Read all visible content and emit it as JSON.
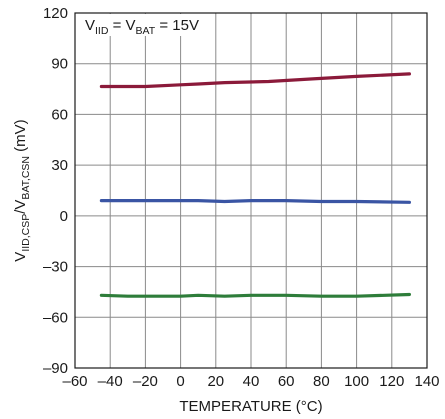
{
  "chart_data": {
    "type": "line",
    "title": "",
    "annotation": {
      "prefix": "V",
      "sub1": "IID",
      "mid": " = V",
      "sub2": "BAT",
      "suffix": " = 15V"
    },
    "xlabel": "TEMPERATURE (°C)",
    "ylabel": {
      "prefix": "V",
      "sub1": "IID,CSP",
      "mid": "/V",
      "sub2": "BAT,CSN",
      "suffix": " (mV)"
    },
    "xlim": [
      -60,
      140
    ],
    "ylim": [
      -90,
      120
    ],
    "x_ticks": [
      -60,
      -40,
      -20,
      0,
      20,
      40,
      60,
      80,
      100,
      120,
      140
    ],
    "x_tick_labels": [
      "–60",
      "–40",
      "–20",
      "0",
      "20",
      "40",
      "60",
      "80",
      "100",
      "120",
      "140"
    ],
    "y_ticks": [
      -90,
      -60,
      -30,
      0,
      30,
      60,
      90,
      120
    ],
    "y_tick_labels": [
      "–90",
      "–60",
      "–30",
      "0",
      "30",
      "60",
      "90",
      "120"
    ],
    "grid": true,
    "legend": "none",
    "series": [
      {
        "color": "#8b1a3a",
        "x": [
          -45,
          -20,
          0,
          10,
          25,
          50,
          75,
          100,
          130
        ],
        "values": [
          76.5,
          76.5,
          77.5,
          78,
          78.8,
          79.5,
          81,
          82.5,
          84
        ]
      },
      {
        "color": "#3a55a4",
        "x": [
          -45,
          -20,
          0,
          10,
          25,
          40,
          60,
          80,
          100,
          130
        ],
        "values": [
          9,
          9,
          9,
          9,
          8.5,
          9,
          9,
          8.5,
          8.5,
          8
        ]
      },
      {
        "color": "#2e7d3a",
        "x": [
          -45,
          -30,
          -20,
          0,
          10,
          25,
          40,
          60,
          80,
          100,
          130
        ],
        "values": [
          -47,
          -47.5,
          -47.5,
          -47.5,
          -47,
          -47.5,
          -47,
          -47,
          -47.5,
          -47.5,
          -46.5
        ]
      }
    ]
  }
}
